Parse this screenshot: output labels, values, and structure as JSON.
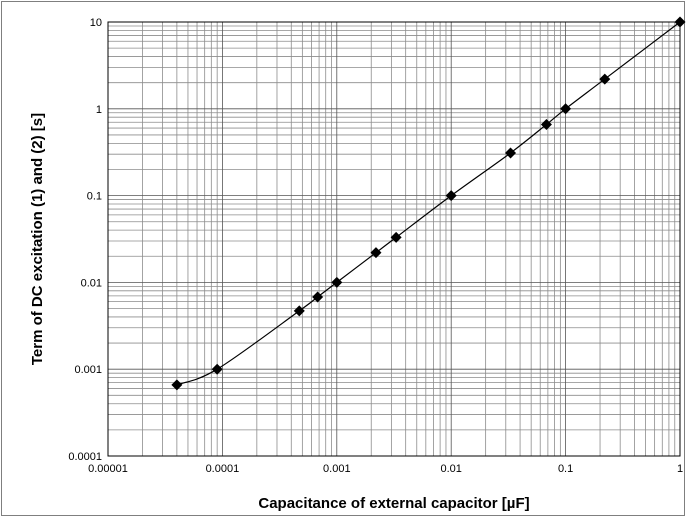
{
  "chart_data": {
    "type": "line",
    "title": "",
    "xlabel": "Capacitance of external capacitor [µF]",
    "ylabel": "Term of DC excitation (1) and (2) [s]",
    "x_scale": "log",
    "y_scale": "log",
    "xlim": [
      1e-05,
      1
    ],
    "ylim": [
      0.0001,
      10
    ],
    "grid": true,
    "x_tick_labels": [
      "0.00001",
      "0.0001",
      "0.001",
      "0.01",
      "0.1",
      "1"
    ],
    "y_tick_labels": [
      "0.0001",
      "0.001",
      "0.01",
      "0.1",
      "1",
      "10"
    ],
    "marker": "diamond",
    "line_color": "#000000",
    "series": [
      {
        "x": [
          4e-05,
          9e-05,
          0.00047,
          0.00068,
          0.001,
          0.0022,
          0.0033,
          0.01,
          0.033,
          0.068,
          0.1,
          0.22,
          1
        ],
        "y": [
          0.00066,
          0.001,
          0.0047,
          0.0068,
          0.01,
          0.022,
          0.033,
          0.1,
          0.31,
          0.66,
          1.0,
          2.2,
          10
        ]
      }
    ]
  }
}
